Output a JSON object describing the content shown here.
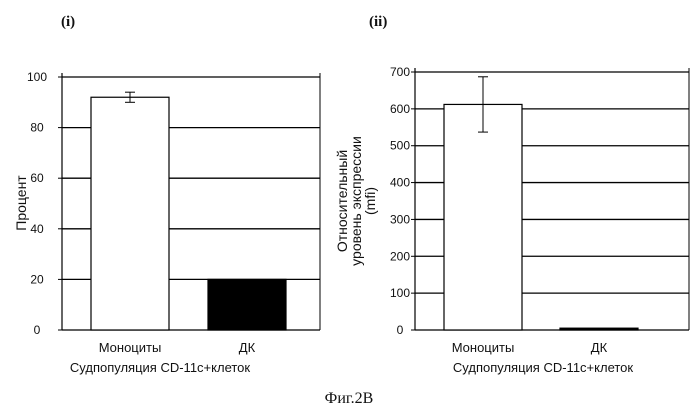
{
  "figure_caption": "Фиг.2B",
  "chart_data": [
    {
      "type": "bar",
      "panel_label": "(i)",
      "categories": [
        "Моноциты",
        "ДК"
      ],
      "values": [
        92,
        20
      ],
      "error": [
        2,
        0
      ],
      "bar_fill": [
        "#ffffff",
        "#000000"
      ],
      "ylabel_lines": [
        "Процент"
      ],
      "xlabel": "Судпопуляция CD-11c+клеток",
      "ylim": [
        0,
        100
      ],
      "yticks": [
        0,
        20,
        40,
        60,
        80,
        100
      ],
      "ytick_labels": [
        "0",
        "20",
        "40",
        "60",
        "80",
        "100"
      ],
      "grid": true
    },
    {
      "type": "bar",
      "panel_label": "(ii)",
      "categories": [
        "Моноциты",
        "ДК"
      ],
      "values": [
        612,
        5
      ],
      "error": [
        75,
        0
      ],
      "bar_fill": [
        "#ffffff",
        "#000000"
      ],
      "ylabel_lines": [
        "Относительный",
        "уровень экспрессии",
        "(mfi)"
      ],
      "xlabel": "Судпопуляция CD-11c+клеток",
      "ylim": [
        0,
        700
      ],
      "yticks": [
        0,
        100,
        200,
        300,
        400,
        500,
        600,
        700
      ],
      "ytick_labels": [
        "0",
        "100",
        "200",
        "300",
        "400",
        "500",
        "600",
        "700"
      ],
      "grid": true
    }
  ]
}
